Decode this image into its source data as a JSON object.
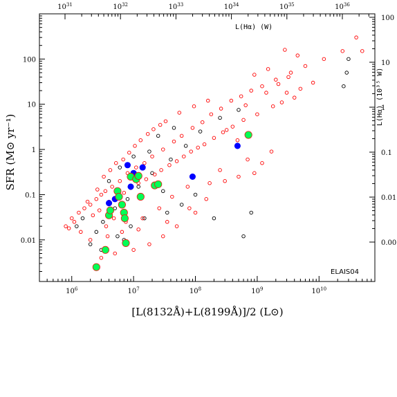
{
  "chart_data": {
    "type": "scatter",
    "title": "",
    "field_label": "ELAIS04",
    "xlabel": "[L(8132Å)+L(8199Å)]/2 (L⊙)",
    "ylabel": "SFR (M⊙ yr⁻¹)",
    "top_axis_label": "L(Hα) (W)",
    "right_axis_label": "L(Hα) (10³⁵ W)",
    "x_scale": "log",
    "y_scale": "log",
    "xlim": [
      300000,
      80000000000
    ],
    "ylim": [
      0.0012,
      1000
    ],
    "x_ticks": [
      {
        "value": 1000000,
        "base": "10",
        "exp": "6"
      },
      {
        "value": 10000000,
        "base": "10",
        "exp": "7"
      },
      {
        "value": 100000000,
        "base": "10",
        "exp": "8"
      },
      {
        "value": 1000000000,
        "base": "10",
        "exp": "9"
      },
      {
        "value": 10000000000,
        "base": "10",
        "exp": "10"
      }
    ],
    "y_ticks": [
      {
        "value": 0.01,
        "label": "0.01"
      },
      {
        "value": 0.1,
        "label": "0.1"
      },
      {
        "value": 1,
        "label": "1"
      },
      {
        "value": 10,
        "label": "10"
      },
      {
        "value": 100,
        "label": "100"
      }
    ],
    "top_ticks": [
      {
        "value": 10000000000000000000000000000000,
        "base": "10",
        "exp": "31"
      },
      {
        "value": 100000000000000000000000000000000,
        "base": "10",
        "exp": "32"
      },
      {
        "value": 1000000000000000000000000000000000,
        "base": "10",
        "exp": "33"
      },
      {
        "value": 10000000000000000000000000000000000,
        "base": "10",
        "exp": "34"
      },
      {
        "value": 100000000000000000000000000000000000,
        "base": "10",
        "exp": "35"
      },
      {
        "value": 1000000000000000000000000000000000000,
        "base": "10",
        "exp": "36"
      }
    ],
    "right_ticks": [
      {
        "value": 0.001,
        "label": "0.001"
      },
      {
        "value": 0.01,
        "label": "0.01"
      },
      {
        "value": 0.1,
        "label": "0.1"
      },
      {
        "value": 1,
        "label": "1"
      },
      {
        "value": 10,
        "label": "10"
      },
      {
        "value": 100,
        "label": "100"
      }
    ],
    "series": [
      {
        "marker": "open-circle",
        "color": "#000000",
        "points": [
          [
            1500000,
            0.03
          ],
          [
            3200000,
            0.025
          ],
          [
            5000000,
            0.05
          ],
          [
            8000000,
            0.08
          ],
          [
            12000000,
            0.15
          ],
          [
            20000000,
            0.3
          ],
          [
            40000000,
            0.6
          ],
          [
            70000000,
            1.2
          ],
          [
            120000000,
            2.5
          ],
          [
            250000000,
            5
          ],
          [
            500000000,
            7.5
          ],
          [
            25000000000,
            25
          ],
          [
            28000000000,
            50
          ],
          [
            30000000000,
            100
          ],
          [
            2000000,
            0.008
          ],
          [
            3000000,
            0.006
          ],
          [
            9000000,
            0.02
          ],
          [
            15000000,
            0.03
          ],
          [
            35000000,
            0.04
          ],
          [
            60000000,
            0.06
          ],
          [
            100000000,
            0.1
          ],
          [
            200000000,
            0.03
          ],
          [
            600000000,
            0.012
          ],
          [
            800000000,
            0.04
          ],
          [
            4000000,
            0.2
          ],
          [
            6000000,
            0.4
          ],
          [
            10000000,
            0.7
          ],
          [
            25000000,
            2
          ],
          [
            45000000,
            3
          ],
          [
            2500000,
            0.015
          ],
          [
            1200000,
            0.02
          ],
          [
            5500000,
            0.012
          ],
          [
            7000000,
            0.01
          ],
          [
            18000000,
            0.9
          ],
          [
            30000000,
            0.12
          ]
        ]
      },
      {
        "marker": "open-circle",
        "color": "#ff0000",
        "points": [
          [
            800000,
            0.02
          ],
          [
            1000000,
            0.03
          ],
          [
            1300000,
            0.04
          ],
          [
            1600000,
            0.05
          ],
          [
            2000000,
            0.06
          ],
          [
            2500000,
            0.08
          ],
          [
            3000000,
            0.1
          ],
          [
            3500000,
            0.12
          ],
          [
            4500000,
            0.15
          ],
          [
            6000000,
            0.2
          ],
          [
            8000000,
            0.3
          ],
          [
            11000000,
            0.4
          ],
          [
            15000000,
            0.5
          ],
          [
            20000000,
            0.7
          ],
          [
            30000000,
            1
          ],
          [
            45000000,
            1.5
          ],
          [
            60000000,
            2
          ],
          [
            90000000,
            3
          ],
          [
            130000000,
            4
          ],
          [
            180000000,
            6
          ],
          [
            260000000,
            8
          ],
          [
            380000000,
            12
          ],
          [
            550000000,
            15
          ],
          [
            800000000,
            20
          ],
          [
            1200000000,
            25
          ],
          [
            2000000000,
            35
          ],
          [
            3500000000,
            50
          ],
          [
            6000000000,
            70
          ],
          [
            12000000000,
            100
          ],
          [
            24000000000,
            150
          ],
          [
            40000000000,
            300
          ],
          [
            50000000000,
            150
          ],
          [
            2800000000,
            160
          ],
          [
            4500000000,
            120
          ],
          [
            1500000000,
            60
          ],
          [
            900000000,
            45
          ],
          [
            700000000,
            0.6
          ],
          [
            300000000,
            0.2
          ],
          [
            150000000,
            0.08
          ],
          [
            100000000,
            0.04
          ],
          [
            50000000,
            0.02
          ],
          [
            30000000,
            0.012
          ],
          [
            18000000,
            0.008
          ],
          [
            10000000,
            0.006
          ],
          [
            5000000,
            0.005
          ],
          [
            3000000,
            0.004
          ],
          [
            2000000,
            0.01
          ],
          [
            1400000,
            0.015
          ],
          [
            1100000,
            0.025
          ],
          [
            2200000,
            0.035
          ],
          [
            2800000,
            0.045
          ],
          [
            4000000,
            0.07
          ],
          [
            5500000,
            0.09
          ],
          [
            7000000,
            0.11
          ],
          [
            9000000,
            0.14
          ],
          [
            12000000,
            0.18
          ],
          [
            16000000,
            0.22
          ],
          [
            22000000,
            0.28
          ],
          [
            28000000,
            0.35
          ],
          [
            38000000,
            0.45
          ],
          [
            50000000,
            0.55
          ],
          [
            65000000,
            0.7
          ],
          [
            85000000,
            0.9
          ],
          [
            110000000,
            1.1
          ],
          [
            140000000,
            1.3
          ],
          [
            200000000,
            1.8
          ],
          [
            280000000,
            2.4
          ],
          [
            400000000,
            3.2
          ],
          [
            600000000,
            4.5
          ],
          [
            1000000000,
            6
          ],
          [
            1800000000,
            9
          ],
          [
            2500000000,
            11
          ],
          [
            4000000000,
            14
          ],
          [
            3000000000,
            18
          ],
          [
            5000000000,
            22
          ],
          [
            8000000000,
            30
          ],
          [
            1700000000,
            0.9
          ],
          [
            1200000000,
            0.5
          ],
          [
            250000000,
            0.35
          ],
          [
            75000000,
            0.15
          ],
          [
            42000000,
            0.09
          ],
          [
            26000000,
            0.05
          ],
          [
            14000000,
            0.03
          ],
          [
            6500000,
            0.015
          ],
          [
            3800000,
            0.012
          ],
          [
            900000,
            0.018
          ],
          [
            1800000,
            0.07
          ],
          [
            2600000,
            0.13
          ],
          [
            3300000,
            0.25
          ],
          [
            4200000,
            0.35
          ],
          [
            5200000,
            0.5
          ],
          [
            6800000,
            0.6
          ],
          [
            8500000,
            0.85
          ],
          [
            10500000,
            1.2
          ],
          [
            13000000,
            1.6
          ],
          [
            17000000,
            2.2
          ],
          [
            21000000,
            2.8
          ],
          [
            27000000,
            3.5
          ],
          [
            33000000,
            4.2
          ],
          [
            55000000,
            6.5
          ],
          [
            95000000,
            9
          ],
          [
            160000000,
            12
          ],
          [
            320000000,
            2.7
          ],
          [
            480000000,
            1.6
          ],
          [
            650000000,
            9.5
          ],
          [
            1400000000,
            18
          ],
          [
            2200000000,
            28
          ],
          [
            3200000000,
            40
          ],
          [
            900000000,
            0.3
          ],
          [
            500000000,
            0.25
          ],
          [
            170000000,
            0.18
          ],
          [
            80000000,
            0.05
          ],
          [
            35000000,
            0.025
          ],
          [
            12000000,
            0.017
          ],
          [
            7500000,
            0.025
          ],
          [
            4800000,
            0.03
          ],
          [
            3600000,
            0.02
          ]
        ]
      },
      {
        "marker": "filled-circle",
        "color": "#0000ff",
        "points": [
          [
            4000000,
            0.065
          ],
          [
            5000000,
            0.08
          ],
          [
            8000000,
            0.45
          ],
          [
            9000000,
            0.15
          ],
          [
            10000000,
            0.3
          ],
          [
            14000000,
            0.4
          ],
          [
            90000000,
            0.25
          ],
          [
            480000000,
            1.2
          ]
        ]
      },
      {
        "marker": "filled-circle",
        "color": "#00ff55",
        "points": [
          [
            2500000,
            0.0025
          ],
          [
            3500000,
            0.006
          ],
          [
            4000000,
            0.035
          ],
          [
            4200000,
            0.045
          ],
          [
            5500000,
            0.12
          ],
          [
            5800000,
            0.09
          ],
          [
            6500000,
            0.06
          ],
          [
            7000000,
            0.04
          ],
          [
            7200000,
            0.03
          ],
          [
            7500000,
            0.0085
          ],
          [
            9000000,
            0.25
          ],
          [
            11000000,
            0.22
          ],
          [
            12000000,
            0.26
          ],
          [
            13000000,
            0.09
          ],
          [
            22000000,
            0.16
          ],
          [
            25000000,
            0.17
          ],
          [
            720000000,
            2.1
          ]
        ]
      }
    ]
  }
}
